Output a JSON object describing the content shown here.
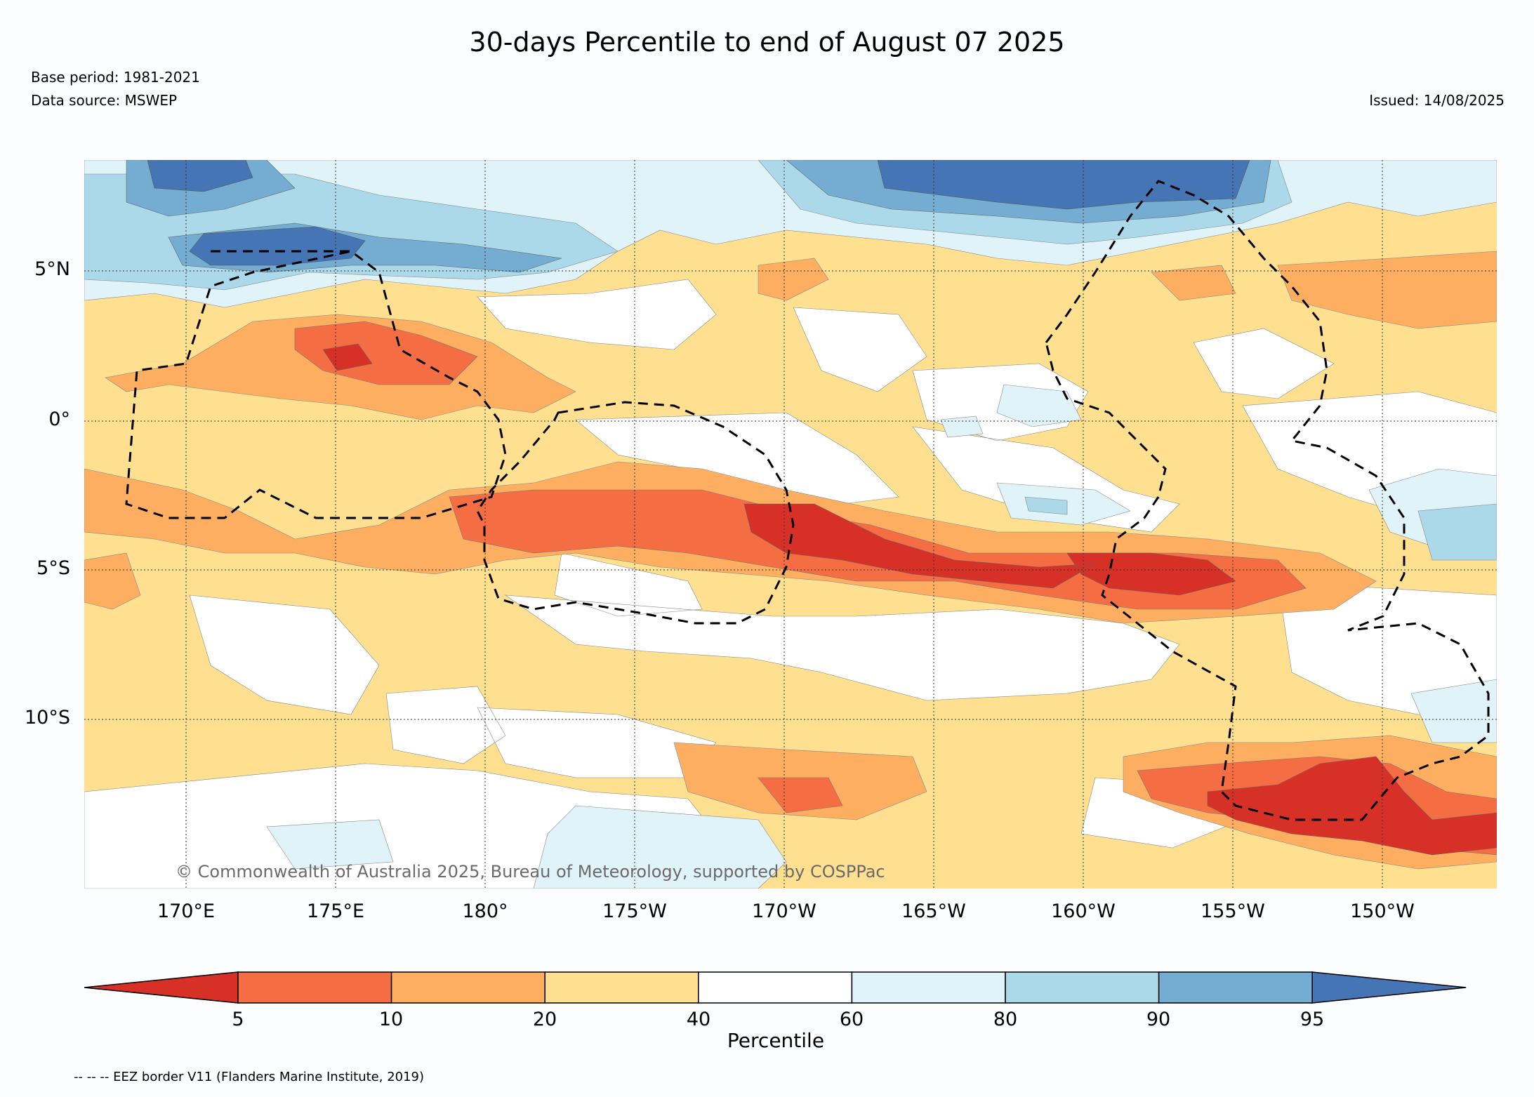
{
  "title": "30-days Percentile to end of August 07 2025",
  "meta": {
    "base_period": "Base period: 1981-2021",
    "data_source": "Data source: MSWEP",
    "issued": "Issued: 14/08/2025"
  },
  "map": {
    "lat_labels": [
      "5°N",
      "0°",
      "5°S",
      "10°S"
    ],
    "lon_labels": [
      "170°E",
      "175°E",
      "180°",
      "175°W",
      "170°W",
      "165°W",
      "160°W",
      "155°W",
      "150°W"
    ],
    "copyright": "© Commonwealth of Australia 2025, Bureau of Meteorology, supported by COSPPac",
    "overlay": "EEZ border (dashed)"
  },
  "colorbar": {
    "label": "Percentile",
    "ticks": [
      "5",
      "10",
      "20",
      "40",
      "60",
      "80",
      "90",
      "95"
    ],
    "colors": [
      "#d73027",
      "#f46d43",
      "#fdae61",
      "#fee090",
      "#ffffff",
      "#e0f3f8",
      "#abd9e9",
      "#74add1",
      "#4575b4"
    ],
    "bin_labels": [
      "<5",
      "5-10",
      "10-20",
      "20-40",
      "40-60",
      "60-80",
      "80-90",
      "90-95",
      ">95"
    ]
  },
  "footnote": "-- -- -- EEZ border V11 (Flanders Marine Institute, 2019)"
}
